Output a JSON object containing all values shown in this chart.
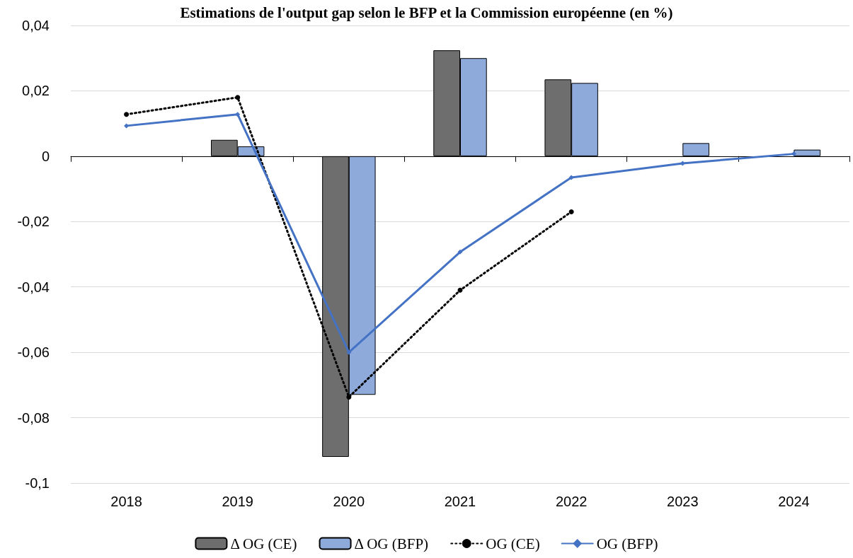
{
  "chart_data": {
    "type": "bar",
    "title": "Estimations de l'output gap selon le BFP et la Commission européenne (en %)",
    "categories": [
      "2018",
      "2019",
      "2020",
      "2021",
      "2022",
      "2023",
      "2024"
    ],
    "series": [
      {
        "name": "Δ OG (CE)",
        "type": "bar",
        "color": "#6e6e6e",
        "values": [
          null,
          0.005,
          -0.092,
          0.0324,
          0.0235,
          null,
          null
        ]
      },
      {
        "name": "Δ OG (BFP)",
        "type": "bar",
        "color": "#8eaadb",
        "values": [
          null,
          0.003,
          -0.073,
          0.03,
          0.0224,
          0.004,
          0.002
        ]
      },
      {
        "name": "OG (CE)",
        "type": "line",
        "color": "#000000",
        "marker": "circle",
        "line_style": "dotted",
        "values": [
          0.0128,
          0.018,
          -0.0737,
          -0.041,
          -0.017,
          null,
          null
        ]
      },
      {
        "name": "OG (BFP)",
        "type": "line",
        "color": "#4472c4",
        "marker": "diamond",
        "line_style": "solid",
        "values": [
          0.0093,
          0.0128,
          -0.06,
          -0.0293,
          -0.0065,
          -0.0022,
          0.0007
        ]
      }
    ],
    "ylim": [
      -0.1,
      0.04
    ],
    "yticks": [
      {
        "value": -0.1,
        "label": "-0,1"
      },
      {
        "value": -0.08,
        "label": "-0,08"
      },
      {
        "value": -0.06,
        "label": "-0,06"
      },
      {
        "value": -0.04,
        "label": "-0,04"
      },
      {
        "value": -0.02,
        "label": "-0,02"
      },
      {
        "value": 0,
        "label": "0"
      },
      {
        "value": 0.02,
        "label": "0,02"
      },
      {
        "value": 0.04,
        "label": "0,04"
      }
    ],
    "grid": "y",
    "legend": "bottom"
  }
}
